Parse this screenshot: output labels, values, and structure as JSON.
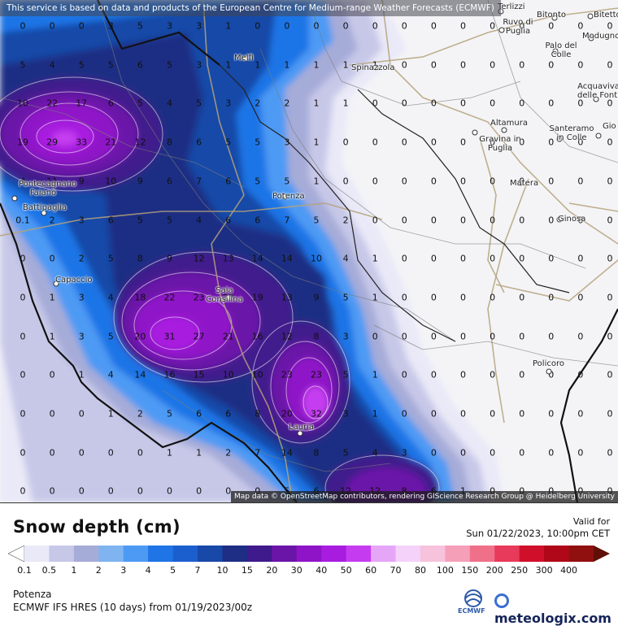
{
  "notice": "This service is based on data and products of the European Centre for Medium-range Weather Forecasts (ECMWF)",
  "attribution": "Map data © OpenStreetMap contributors, rendering GIScience Research Group @ Heidelberg University",
  "legend": {
    "title": "Snow depth (cm)",
    "valid_label": "Valid for",
    "valid_time": "Sun 01/22/2023, 10:00pm CET",
    "ticks": [
      "0.1",
      "0.5",
      "1",
      "2",
      "3",
      "4",
      "5",
      "7",
      "10",
      "15",
      "20",
      "30",
      "40",
      "50",
      "60",
      "70",
      "80",
      "100",
      "150",
      "200",
      "250",
      "300",
      "400"
    ],
    "colors": [
      "#e9e9f8",
      "#c7c8e8",
      "#a6acd8",
      "#7fb4f0",
      "#4d9af4",
      "#1f74e6",
      "#1b5fcf",
      "#1848a8",
      "#1e2e84",
      "#3f1a8c",
      "#6b14a8",
      "#8f14c8",
      "#a81ce0",
      "#c53cf0",
      "#e6a6f8",
      "#f4d2fa",
      "#f6c2dc",
      "#f5a0b8",
      "#f0708a",
      "#e83a5a",
      "#d0102a",
      "#b00818",
      "#901010",
      "#601008"
    ]
  },
  "location": "Potenza",
  "model": "ECMWF IFS HRES (10 days) from 01/19/2023/00z",
  "brand": {
    "name": "meteologix.com",
    "ecmwf": "ECMWF"
  },
  "cities": [
    {
      "name": "Melfi"
    },
    {
      "name": "Spinazzola"
    },
    {
      "name": "Terlizzi"
    },
    {
      "name": "Bitonto"
    },
    {
      "name": "Bitetto"
    },
    {
      "name": "Ruvo di Puglia"
    },
    {
      "name": "Palo del Colle"
    },
    {
      "name": "Modugno"
    },
    {
      "name": "Acquaviva delle Fonti"
    },
    {
      "name": "Altamura"
    },
    {
      "name": "Gravina in Puglia"
    },
    {
      "name": "Santeramo in Colle"
    },
    {
      "name": "Gio"
    },
    {
      "name": "Matera"
    },
    {
      "name": "Ginosa"
    },
    {
      "name": "Pontecagnano Faiano"
    },
    {
      "name": "Battipaglia"
    },
    {
      "name": "Potenza"
    },
    {
      "name": "Capaccio"
    },
    {
      "name": "Sala Consilina"
    },
    {
      "name": "Policoro"
    },
    {
      "name": "Lauria"
    }
  ],
  "grid_values": [
    [
      "0",
      "0",
      "0",
      "3",
      "5",
      "3",
      "3",
      "1",
      "0",
      "0",
      "0",
      "0",
      "0",
      "0",
      "0",
      "0",
      "0",
      "0",
      "0",
      "0",
      "0"
    ],
    [
      "5",
      "4",
      "5",
      "5",
      "6",
      "5",
      "3",
      "1",
      "1",
      "1",
      "1",
      "1",
      "1",
      "0",
      "0",
      "0",
      "0",
      "0",
      "0",
      "0",
      "0"
    ],
    [
      "10",
      "22",
      "17",
      "6",
      "5",
      "4",
      "5",
      "3",
      "2",
      "2",
      "1",
      "1",
      "0",
      "0",
      "0",
      "0",
      "0",
      "0",
      "0",
      "0",
      "0"
    ],
    [
      "19",
      "29",
      "33",
      "21",
      "12",
      "8",
      "6",
      "5",
      "5",
      "3",
      "1",
      "0",
      "0",
      "0",
      "0",
      "0",
      "0",
      "0",
      "0",
      "0",
      "0"
    ],
    [
      "4",
      "11",
      "9",
      "10",
      "9",
      "6",
      "7",
      "6",
      "5",
      "5",
      "1",
      "0",
      "0",
      "0",
      "0",
      "0",
      "0",
      "0",
      "0",
      "0",
      "0"
    ],
    [
      "0.1",
      "2",
      "3",
      "6",
      "5",
      "5",
      "4",
      "6",
      "6",
      "7",
      "5",
      "2",
      "0",
      "0",
      "0",
      "0",
      "0",
      "0",
      "0",
      "0",
      "0"
    ],
    [
      "0",
      "0",
      "2",
      "5",
      "8",
      "9",
      "12",
      "13",
      "14",
      "14",
      "10",
      "4",
      "1",
      "0",
      "0",
      "0",
      "0",
      "0",
      "0",
      "0",
      "0"
    ],
    [
      "0",
      "1",
      "3",
      "4",
      "18",
      "22",
      "23",
      "22",
      "19",
      "13",
      "9",
      "5",
      "1",
      "0",
      "0",
      "0",
      "0",
      "0",
      "0",
      "0",
      "0"
    ],
    [
      "0",
      "1",
      "3",
      "5",
      "20",
      "31",
      "27",
      "21",
      "16",
      "12",
      "8",
      "3",
      "0",
      "0",
      "0",
      "0",
      "0",
      "0",
      "0",
      "0",
      "0"
    ],
    [
      "0",
      "0",
      "1",
      "4",
      "14",
      "16",
      "15",
      "10",
      "10",
      "23",
      "23",
      "5",
      "1",
      "0",
      "0",
      "0",
      "0",
      "0",
      "0",
      "0",
      "0"
    ],
    [
      "0",
      "0",
      "0",
      "1",
      "2",
      "5",
      "6",
      "6",
      "8",
      "20",
      "32",
      "3",
      "1",
      "0",
      "0",
      "0",
      "0",
      "0",
      "0",
      "0",
      "0"
    ],
    [
      "0",
      "0",
      "0",
      "0",
      "0",
      "1",
      "1",
      "2",
      "7",
      "14",
      "8",
      "5",
      "4",
      "3",
      "0",
      "0",
      "0",
      "0",
      "0",
      "0",
      "0"
    ],
    [
      "0",
      "0",
      "0",
      "0",
      "0",
      "0",
      "0",
      "0",
      "0",
      "5",
      "6",
      "12",
      "12",
      "8",
      "6",
      "1",
      "0",
      "0",
      "0",
      "0",
      "0"
    ]
  ]
}
